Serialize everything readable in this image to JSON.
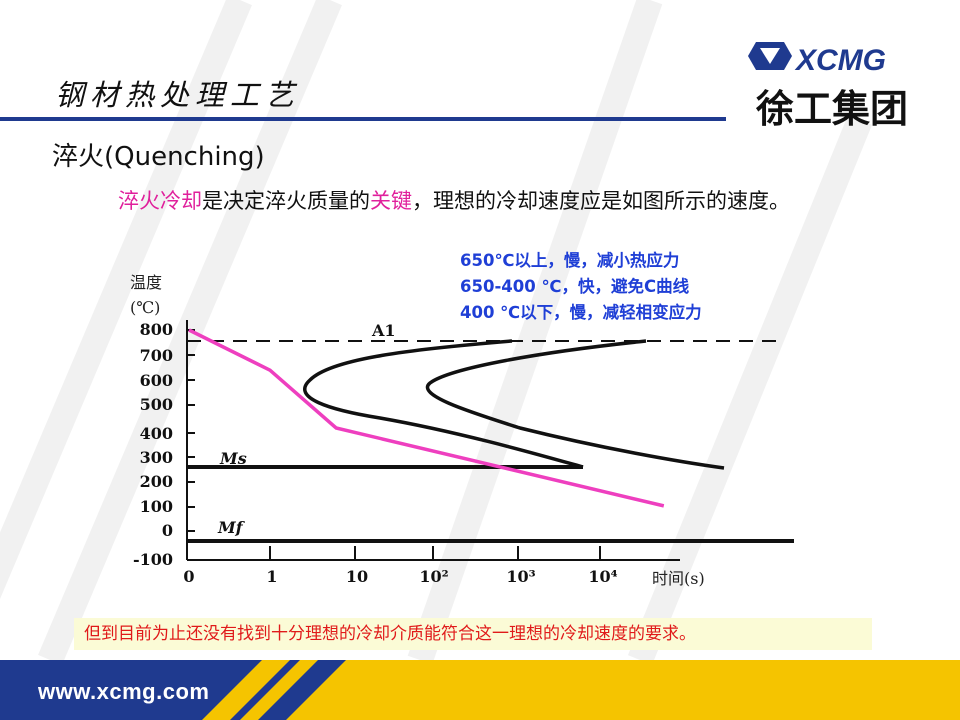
{
  "header": {
    "title": "钢材热处理工艺",
    "logo_text": "XCMG",
    "logo_cn": "徐工集团"
  },
  "section_title": "淬火(Quenching)",
  "intro": {
    "part1": "淬火冷却",
    "part2": "是决定淬火质量的",
    "part3": "关键",
    "part4": "，理想的冷却速度应是如图所示的速度。"
  },
  "notes": [
    "650℃以上，慢，减小热应力",
    "650-400 ℃，快，避免C曲线",
    "400 ℃以下，慢，减轻相变应力"
  ],
  "chart_data": {
    "type": "line",
    "ylabel": "温度\n(℃)",
    "xlabel": "时间(s)",
    "y_ticks": [
      "800",
      "700",
      "600",
      "500",
      "400",
      "300",
      "200",
      "100",
      "0",
      "-100"
    ],
    "x_ticks": [
      "0",
      "1",
      "10",
      "10²",
      "10³",
      "10⁴"
    ],
    "annotations": [
      "A1",
      "Ms",
      "Mf"
    ],
    "series": [
      {
        "values": [
          [
            0,
            800
          ],
          [
            1,
            640
          ],
          [
            6,
            410
          ],
          [
            60000,
            100
          ]
        ],
        "color": "#ee3fbf"
      }
    ]
  },
  "bottom_note": "但到目前为止还没有找到十分理想的冷却介质能符合这一理想的冷却速度的要求。",
  "footer": {
    "url": "www.xcmg.com"
  },
  "colors": {
    "brand_blue": "#1f3a8f",
    "accent_yellow": "#f5c400",
    "highlight_pink": "#e0209c",
    "note_blue": "#1f3fd6",
    "note_red": "#e01a1a"
  }
}
